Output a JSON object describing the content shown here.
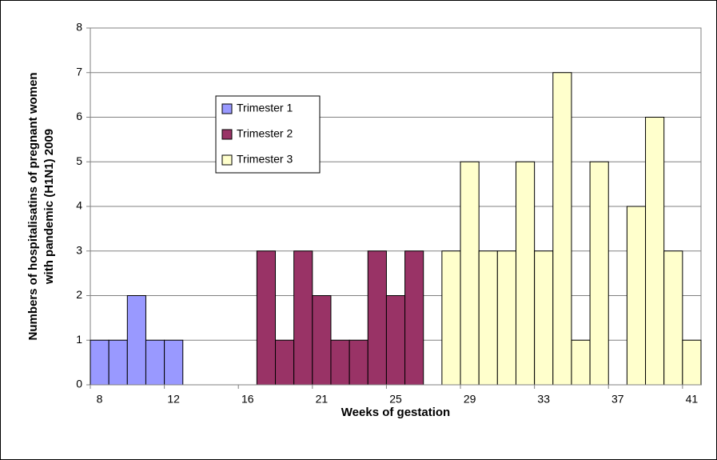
{
  "chart_data": {
    "type": "bar",
    "x_label": "Weeks of gestation",
    "y_label": [
      "Numbers of hospitalisatins of pregnant women",
      "with pandemic (H1N1) 2009"
    ],
    "categories": [
      "8",
      null,
      null,
      null,
      "12",
      null,
      null,
      null,
      "16",
      null,
      null,
      null,
      "21",
      null,
      null,
      null,
      "25",
      null,
      null,
      null,
      "29",
      null,
      null,
      null,
      "33",
      null,
      null,
      null,
      "37",
      null,
      null,
      null,
      "41"
    ],
    "series": [
      {
        "name": "Trimester 1",
        "color": "#9999ff",
        "values": [
          1,
          1,
          2,
          1,
          1,
          null,
          null,
          null,
          null,
          null,
          null,
          null,
          null,
          null,
          null,
          null,
          null,
          null,
          null,
          null,
          null,
          null,
          null,
          null,
          null,
          null,
          null,
          null,
          null,
          null,
          null,
          null,
          null
        ]
      },
      {
        "name": "Trimester 2",
        "color": "#993366",
        "values": [
          null,
          null,
          null,
          null,
          null,
          null,
          null,
          null,
          null,
          3,
          1,
          3,
          2,
          1,
          1,
          3,
          2,
          3,
          null,
          null,
          null,
          null,
          null,
          null,
          null,
          null,
          null,
          null,
          null,
          null,
          null,
          null,
          null
        ]
      },
      {
        "name": "Trimester 3",
        "color": "#ffffcc",
        "values": [
          null,
          null,
          null,
          null,
          null,
          null,
          null,
          null,
          null,
          null,
          null,
          null,
          null,
          null,
          null,
          null,
          null,
          null,
          null,
          3,
          5,
          3,
          3,
          5,
          3,
          7,
          1,
          5,
          null,
          4,
          6,
          3,
          1
        ]
      }
    ],
    "ylim": [
      0,
      8
    ],
    "yticks": [
      0,
      1,
      2,
      3,
      4,
      5,
      6,
      7,
      8
    ],
    "grid": true,
    "legend": "upper-left"
  }
}
